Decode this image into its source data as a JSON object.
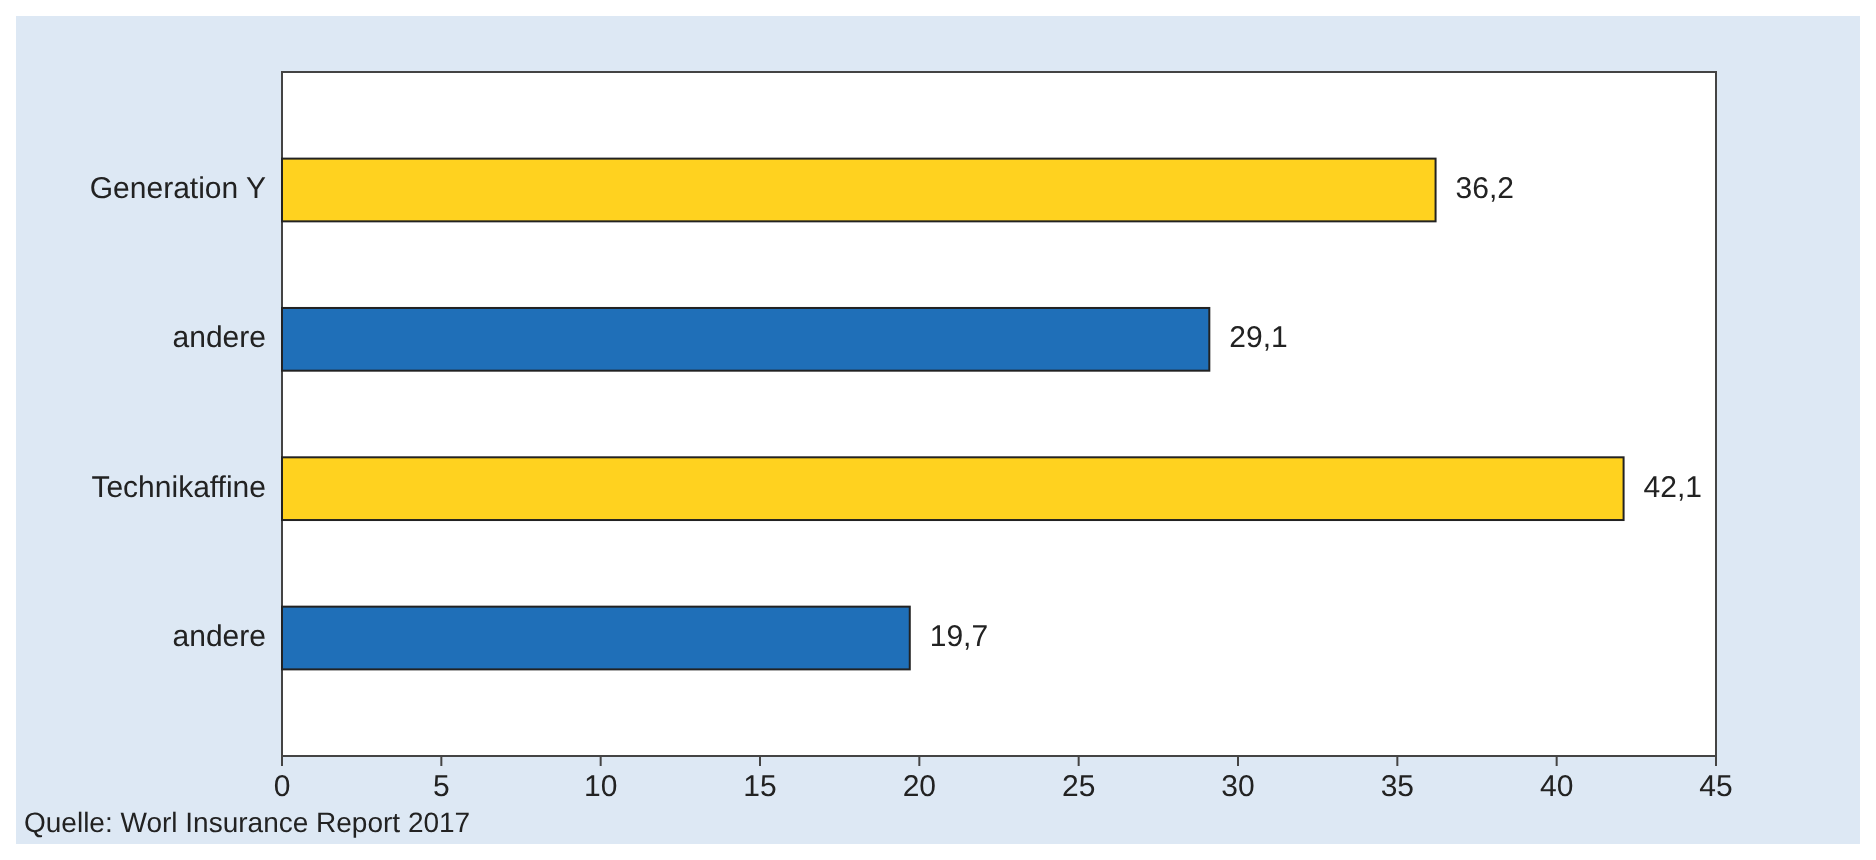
{
  "chart_data": {
    "type": "bar",
    "orientation": "horizontal",
    "categories": [
      "Generation Y",
      "andere",
      "Technikaffine",
      "andere"
    ],
    "values": [
      36.2,
      29.1,
      42.1,
      19.7
    ],
    "colors": [
      "#ffd21f",
      "#1f6fb8",
      "#ffd21f",
      "#1f6fb8"
    ],
    "value_labels": [
      "36,2",
      "29,1",
      "42,1",
      "19,7"
    ],
    "xlim": [
      0,
      45
    ],
    "xticks": [
      0,
      5,
      10,
      15,
      20,
      25,
      30,
      35,
      40,
      45
    ],
    "grid": false,
    "annotations": [
      "Quelle: Worl Insurance Report 2017"
    ]
  }
}
